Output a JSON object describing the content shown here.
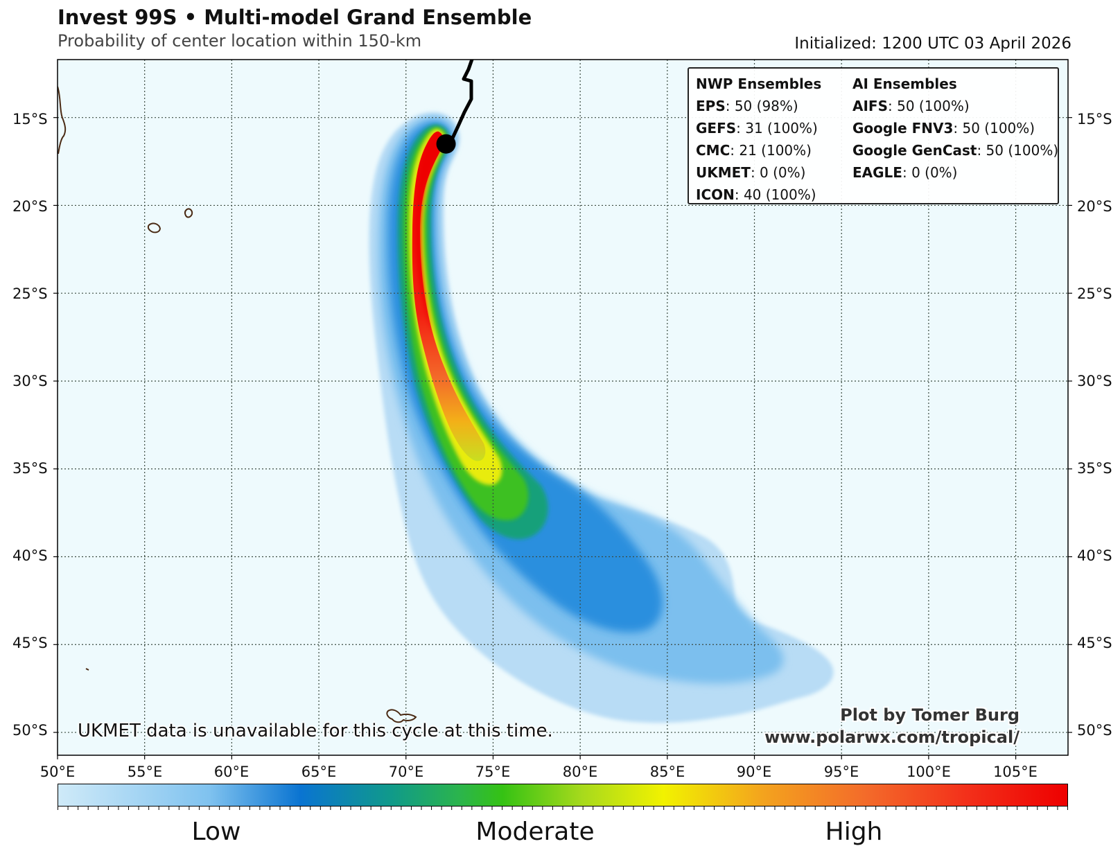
{
  "header": {
    "title": "Invest 99S • Multi-model Grand Ensemble",
    "subtitle": "Probability of center location within 150-km",
    "initialized": "Initialized: 1200 UTC 03 April 2026"
  },
  "legend": {
    "nwp_header": "NWP Ensembles",
    "ai_header": "AI Ensembles",
    "nwp": [
      {
        "name": "EPS",
        "value": ": 50 (98%)"
      },
      {
        "name": "GEFS",
        "value": ": 31 (100%)"
      },
      {
        "name": "CMC",
        "value": ": 21 (100%)"
      },
      {
        "name": "UKMET",
        "value": ": 0 (0%)"
      },
      {
        "name": "ICON",
        "value": ": 40 (100%)"
      }
    ],
    "ai": [
      {
        "name": "AIFS",
        "value": ": 50 (100%)"
      },
      {
        "name": "Google FNV3",
        "value": ": 50 (100%)"
      },
      {
        "name": "Google GenCast",
        "value": ": 50 (100%)"
      },
      {
        "name": "EAGLE",
        "value": ": 0 (0%)"
      }
    ]
  },
  "map": {
    "lon_range": [
      50,
      108
    ],
    "lat_range": [
      -51.3,
      -11.7
    ],
    "lat_labels": [
      "15°S",
      "20°S",
      "25°S",
      "30°S",
      "35°S",
      "40°S",
      "45°S",
      "50°S"
    ],
    "lon_labels": [
      "50°E",
      "55°E",
      "60°E",
      "65°E",
      "70°E",
      "75°E",
      "80°E",
      "85°E",
      "90°E",
      "95°E",
      "100°E",
      "105°E"
    ],
    "storm_center": {
      "lon": 72.3,
      "lat": -16.5
    },
    "ocean_color": "#eefafd",
    "land_outline_color": "#4a2a14"
  },
  "colorbar": {
    "labels": [
      "Low",
      "Moderate",
      "High"
    ]
  },
  "note": "UKMET data is unavailable for this cycle at this time.",
  "credit": {
    "line1": "Plot by Tomer Burg",
    "line2": "www.polarwx.com/tropical/"
  }
}
